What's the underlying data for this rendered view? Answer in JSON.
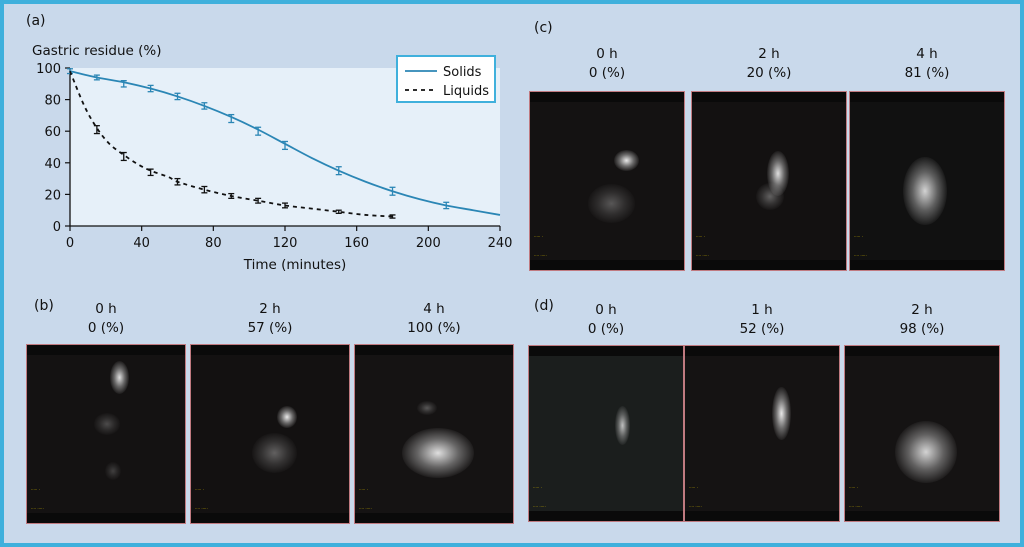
{
  "chart_data": {
    "type": "line",
    "panel_label": "(a)",
    "ylabel": "Gastric residue (%)",
    "xlabel": "Time (minutes)",
    "xlim": [
      0,
      240
    ],
    "ylim": [
      0,
      100
    ],
    "x_ticks": [
      0,
      40,
      80,
      120,
      160,
      200,
      240
    ],
    "y_ticks": [
      0,
      20,
      40,
      60,
      80,
      100
    ],
    "grid": false,
    "legend_position": "top-right",
    "series": [
      {
        "name": "Solids",
        "color": "#2b86b5",
        "style": "solid",
        "curve_x": [
          0,
          15,
          30,
          45,
          60,
          75,
          90,
          105,
          120,
          135,
          150,
          165,
          180,
          195,
          210,
          225,
          240
        ],
        "curve_y": [
          98,
          94,
          91,
          87,
          82,
          76,
          69,
          61,
          52,
          43,
          35,
          28,
          22,
          17,
          13,
          10,
          7
        ],
        "points_x": [
          0,
          15,
          30,
          45,
          60,
          75,
          90,
          105,
          120,
          150,
          180,
          210
        ],
        "points_y": [
          98,
          94,
          90,
          87,
          82,
          76,
          68,
          60,
          51,
          35,
          22,
          13
        ],
        "error": [
          1.5,
          1.5,
          2,
          2,
          2,
          2,
          2.5,
          2.5,
          2.5,
          2.5,
          2.5,
          2
        ]
      },
      {
        "name": "Liquids",
        "color": "#111111",
        "style": "dashed",
        "curve_x": [
          0,
          8,
          15,
          22,
          30,
          38,
          45,
          55,
          60,
          75,
          90,
          105,
          120,
          135,
          150,
          165,
          180
        ],
        "curve_y": [
          98,
          76,
          62,
          52,
          45,
          39,
          35,
          31,
          28,
          23,
          19,
          16,
          13,
          11,
          9,
          7,
          6
        ],
        "points_x": [
          15,
          30,
          45,
          60,
          75,
          90,
          105,
          120,
          150,
          180
        ],
        "points_y": [
          61,
          44,
          34,
          28,
          23,
          19,
          16,
          13,
          9,
          6
        ],
        "error": [
          2.5,
          2.5,
          2,
          2,
          2,
          1.5,
          1.5,
          1.5,
          1,
          1
        ]
      }
    ]
  },
  "panels": [
    {
      "label": "(b)",
      "images": [
        {
          "time": "0 h",
          "pct": "0 (%)",
          "tone": "#141212",
          "blobs": [
            [
              0.58,
              0.18,
              0.12,
              0.18,
              0.9
            ],
            [
              0.5,
              0.44,
              0.16,
              0.12,
              0.25
            ],
            [
              0.54,
              0.7,
              0.1,
              0.1,
              0.2
            ]
          ]
        },
        {
          "time": "2 h",
          "pct": "57 (%)",
          "tone": "#131111",
          "blobs": [
            [
              0.6,
              0.4,
              0.12,
              0.12,
              0.95
            ],
            [
              0.52,
              0.6,
              0.28,
              0.22,
              0.35
            ]
          ]
        },
        {
          "time": "4 h",
          "pct": "100 (%)",
          "tone": "#151313",
          "blobs": [
            [
              0.52,
              0.6,
              0.45,
              0.28,
              0.9
            ],
            [
              0.45,
              0.35,
              0.12,
              0.08,
              0.3
            ]
          ]
        }
      ]
    },
    {
      "label": "(c)",
      "images": [
        {
          "time": "0 h",
          "pct": "0 (%)",
          "tone": "#141212",
          "blobs": [
            [
              0.62,
              0.38,
              0.16,
              0.12,
              0.95
            ],
            [
              0.52,
              0.62,
              0.3,
              0.22,
              0.3
            ]
          ]
        },
        {
          "time": "2 h",
          "pct": "20 (%)",
          "tone": "#131111",
          "blobs": [
            [
              0.55,
              0.45,
              0.14,
              0.25,
              0.9
            ],
            [
              0.5,
              0.58,
              0.18,
              0.15,
              0.35
            ]
          ]
        },
        {
          "time": "4 h",
          "pct": "81 (%)",
          "tone": "#111111",
          "blobs": [
            [
              0.48,
              0.55,
              0.28,
              0.38,
              0.85
            ]
          ]
        }
      ]
    },
    {
      "label": "(d)",
      "images": [
        {
          "time": "0 h",
          "pct": "0 (%)",
          "tone": "#1b1e1d",
          "blobs": [
            [
              0.6,
              0.45,
              0.1,
              0.22,
              0.75
            ]
          ]
        },
        {
          "time": "1 h",
          "pct": "52 (%)",
          "tone": "#151313",
          "blobs": [
            [
              0.62,
              0.38,
              0.12,
              0.3,
              0.95
            ]
          ]
        },
        {
          "time": "2 h",
          "pct": "98 (%)",
          "tone": "#151313",
          "blobs": [
            [
              0.52,
              0.6,
              0.4,
              0.35,
              0.85
            ]
          ]
        }
      ]
    }
  ]
}
